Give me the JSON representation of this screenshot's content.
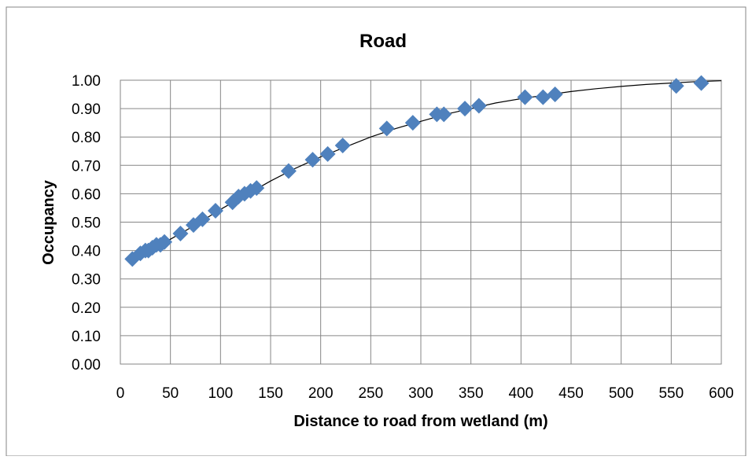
{
  "chart_data": {
    "type": "scatter",
    "title": "Road",
    "xlabel": "Distance to road from wetland (m)",
    "ylabel": "Occupancy",
    "xlim": [
      0,
      600
    ],
    "ylim": [
      0,
      1
    ],
    "x_ticks": [
      "0",
      "50",
      "100",
      "150",
      "200",
      "250",
      "300",
      "350",
      "400",
      "450",
      "500",
      "550",
      "600"
    ],
    "y_ticks": [
      "0.00",
      "0.10",
      "0.20",
      "0.30",
      "0.40",
      "0.50",
      "0.60",
      "0.70",
      "0.80",
      "0.90",
      "1.00"
    ],
    "grid": true,
    "legend": "none",
    "marker": "diamond",
    "marker_color": "#4f81bd",
    "trend_color": "#000000",
    "series": [
      {
        "x": [
          12,
          20,
          25,
          28,
          32,
          36,
          40,
          44,
          60,
          73,
          82,
          95,
          112,
          118,
          124,
          130,
          136,
          168,
          192,
          207,
          222,
          266,
          292,
          316,
          323,
          344,
          358,
          404,
          422,
          434,
          555,
          580
        ],
        "y": [
          0.37,
          0.39,
          0.4,
          0.4,
          0.41,
          0.42,
          0.42,
          0.43,
          0.46,
          0.49,
          0.51,
          0.54,
          0.57,
          0.59,
          0.6,
          0.61,
          0.62,
          0.68,
          0.72,
          0.74,
          0.77,
          0.83,
          0.85,
          0.88,
          0.88,
          0.9,
          0.91,
          0.94,
          0.94,
          0.95,
          0.98,
          0.99
        ]
      }
    ],
    "trendline": {
      "x": [
        12,
        30,
        50,
        75,
        100,
        125,
        150,
        175,
        200,
        225,
        250,
        275,
        300,
        325,
        350,
        375,
        400,
        425,
        450,
        475,
        500,
        525,
        550,
        575,
        600
      ],
      "y": [
        0.36,
        0.4,
        0.44,
        0.49,
        0.545,
        0.595,
        0.645,
        0.69,
        0.73,
        0.765,
        0.8,
        0.83,
        0.855,
        0.88,
        0.9,
        0.92,
        0.935,
        0.948,
        0.96,
        0.97,
        0.978,
        0.985,
        0.99,
        0.995,
        0.998
      ]
    }
  }
}
